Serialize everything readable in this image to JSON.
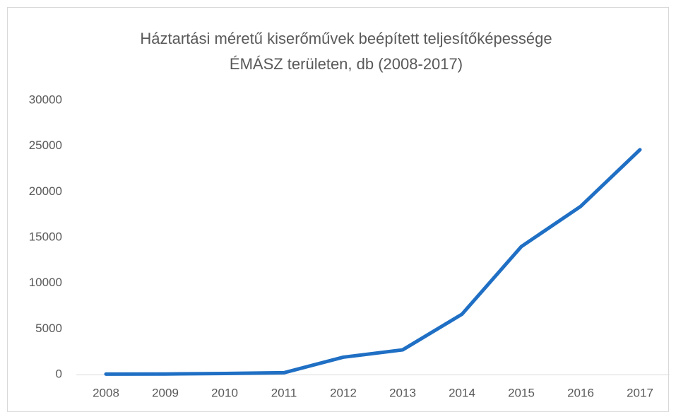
{
  "chart_data": {
    "type": "line",
    "title": [
      "Háztartási méretű kiserőművek beépített teljesítőképessége",
      "ÉMÁSZ területen, db (2008-2017)"
    ],
    "categories": [
      "2008",
      "2009",
      "2010",
      "2011",
      "2012",
      "2013",
      "2014",
      "2015",
      "2016",
      "2017"
    ],
    "values": [
      50,
      60,
      120,
      200,
      1900,
      2700,
      6600,
      14000,
      18400,
      24600
    ],
    "color": "#1f6fc4",
    "ylim": [
      0,
      30000
    ],
    "yticks": [
      0,
      5000,
      10000,
      15000,
      20000,
      25000,
      30000
    ],
    "grid": false
  }
}
